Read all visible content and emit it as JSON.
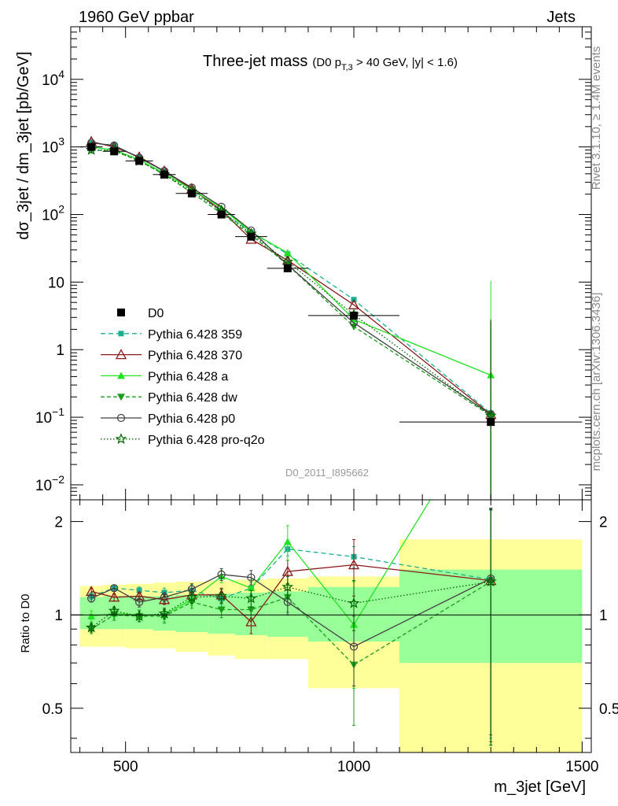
{
  "header": {
    "left": "1960 GeV ppbar",
    "right": "Jets"
  },
  "side_labels": {
    "rivet": "Rivet 3.1.10, ≥ 1.4M events",
    "mcplots": "mcplots.cern.ch [arXiv:1306.3436]"
  },
  "chart_data": {
    "type": "line",
    "title": "Three-jet mass",
    "subtitle": "(D0 pT,3 > 40 GeV, |y| < 1.6)",
    "subtitle_parts": {
      "pre": "(D0 p",
      "sub": "T,3",
      "post": " > 40 GeV, |y| < 1.6)"
    },
    "watermark": "D0_2011_I895662",
    "xlabel": "m_3jet [GeV]",
    "ylabel": "dσ_3jet / dm_3jet [pb/GeV]",
    "ratio_ylabel": "Ratio to D0",
    "xlim": [
      380,
      1520
    ],
    "ylim": [
      0.006,
      60000
    ],
    "ratio_ylim": [
      0.36,
      2.35
    ],
    "yscale": "log",
    "ratio_yscale": "log",
    "x_ticks": [
      "500",
      "1000",
      "1500"
    ],
    "y_ticks": [
      {
        "base": "10",
        "exp": "4",
        "v": 10000
      },
      {
        "base": "10",
        "exp": "3",
        "v": 1000
      },
      {
        "base": "10",
        "exp": "2",
        "v": 100
      },
      {
        "base": "10",
        "exp": "",
        "v": 10
      },
      {
        "base": "1",
        "exp": "",
        "v": 1
      },
      {
        "base": "10",
        "exp": "−1",
        "v": 0.1
      },
      {
        "base": "10",
        "exp": "−2",
        "v": 0.01
      }
    ],
    "ratio_ticks": [
      {
        "label": "2",
        "v": 2
      },
      {
        "label": "1",
        "v": 1
      },
      {
        "label": "0.5",
        "v": 0.5
      }
    ],
    "legend_position": "lower-left",
    "data": {
      "name": "D0",
      "x": [
        425,
        475,
        530,
        585,
        645,
        710,
        775,
        855,
        1000,
        1300
      ],
      "y": [
        1000,
        860,
        620,
        390,
        205,
        100,
        47,
        16,
        3.2,
        0.085
      ],
      "xerr": [
        [
          400,
          450
        ],
        [
          450,
          500
        ],
        [
          500,
          560
        ],
        [
          560,
          610
        ],
        [
          610,
          680
        ],
        [
          680,
          740
        ],
        [
          740,
          810
        ],
        [
          810,
          900
        ],
        [
          900,
          1100
        ],
        [
          1100,
          1500
        ]
      ]
    },
    "bands": [
      {
        "x0": 400,
        "x1": 450,
        "in": [
          0.9,
          1.14
        ],
        "out": [
          0.79,
          1.24
        ]
      },
      {
        "x0": 450,
        "x1": 500,
        "in": [
          0.9,
          1.15
        ],
        "out": [
          0.79,
          1.25
        ]
      },
      {
        "x0": 500,
        "x1": 560,
        "in": [
          0.9,
          1.15
        ],
        "out": [
          0.78,
          1.26
        ]
      },
      {
        "x0": 560,
        "x1": 610,
        "in": [
          0.89,
          1.15
        ],
        "out": [
          0.78,
          1.27
        ]
      },
      {
        "x0": 610,
        "x1": 680,
        "in": [
          0.88,
          1.16
        ],
        "out": [
          0.76,
          1.28
        ]
      },
      {
        "x0": 680,
        "x1": 740,
        "in": [
          0.87,
          1.17
        ],
        "out": [
          0.74,
          1.29
        ]
      },
      {
        "x0": 740,
        "x1": 810,
        "in": [
          0.86,
          1.18
        ],
        "out": [
          0.72,
          1.3
        ]
      },
      {
        "x0": 810,
        "x1": 900,
        "in": [
          0.85,
          1.19
        ],
        "out": [
          0.72,
          1.31
        ]
      },
      {
        "x0": 900,
        "x1": 1100,
        "in": [
          0.82,
          1.23
        ],
        "out": [
          0.58,
          1.33
        ]
      },
      {
        "x0": 1100,
        "x1": 1500,
        "in": [
          0.7,
          1.4
        ],
        "out": [
          0.34,
          1.75
        ]
      }
    ],
    "series": [
      {
        "name": "Pythia 6.428 359",
        "color": "#1aaf8f",
        "dash": "6,4",
        "marker": "square",
        "x": [
          425,
          475,
          530,
          585,
          645,
          710,
          775,
          855,
          1000,
          1300
        ],
        "y": [
          1150,
          1050,
          700,
          430,
          240,
          110,
          55,
          26,
          5.5,
          0.115
        ],
        "ratio": [
          1.15,
          1.22,
          1.2,
          1.18,
          1.2,
          1.13,
          1.22,
          1.63,
          1.54,
          1.3
        ],
        "err": [
          0.03,
          0.03,
          0.03,
          0.04,
          0.05,
          0.05,
          0.05,
          0.08,
          0.12,
          0.9
        ]
      },
      {
        "name": "Pythia 6.428 370",
        "color": "#8b1a1a",
        "dash": "",
        "marker": "triangle-open",
        "x": [
          425,
          475,
          530,
          585,
          645,
          710,
          775,
          855,
          1000,
          1300
        ],
        "y": [
          1200,
          1000,
          710,
          440,
          240,
          115,
          43,
          21,
          4.6,
          0.11
        ],
        "ratio": [
          1.19,
          1.14,
          1.15,
          1.12,
          1.16,
          1.16,
          0.95,
          1.38,
          1.45,
          1.29
        ],
        "err": [
          0.03,
          0.03,
          0.03,
          0.04,
          0.05,
          0.06,
          0.08,
          0.12,
          0.3,
          0.9
        ]
      },
      {
        "name": "Pythia 6.428 a",
        "color": "#22e322",
        "dash": "",
        "marker": "triangle",
        "x": [
          425,
          475,
          530,
          585,
          645,
          710,
          775,
          855,
          1000,
          1300
        ],
        "y": [
          1000,
          900,
          650,
          405,
          235,
          125,
          55,
          27,
          2.8,
          0.42
        ],
        "ratio": [
          0.99,
          1.01,
          1.0,
          1.0,
          1.12,
          1.33,
          1.22,
          1.72,
          0.93,
          4.9
        ],
        "err": [
          0.04,
          0.04,
          0.04,
          0.05,
          0.05,
          0.06,
          0.08,
          0.22,
          0.35,
          1.0
        ]
      },
      {
        "name": "Pythia 6.428 dw",
        "color": "#1b9c1b",
        "dash": "5,3",
        "marker": "triangle-down",
        "x": [
          425,
          475,
          530,
          585,
          645,
          710,
          775,
          855,
          1000,
          1300
        ],
        "y": [
          900,
          870,
          620,
          390,
          210,
          104,
          50,
          18,
          2.2,
          0.105
        ],
        "ratio": [
          0.9,
          1.0,
          0.99,
          0.99,
          1.1,
          1.04,
          1.04,
          1.14,
          0.69,
          1.28
        ],
        "err": [
          0.03,
          0.04,
          0.04,
          0.05,
          0.05,
          0.06,
          0.08,
          0.12,
          0.25,
          0.9
        ]
      },
      {
        "name": "Pythia 6.428 p0",
        "color": "#404040",
        "dash": "",
        "marker": "circle-open",
        "x": [
          425,
          475,
          530,
          585,
          645,
          710,
          775,
          855,
          1000,
          1300
        ],
        "y": [
          1150,
          1050,
          690,
          440,
          250,
          130,
          58,
          18,
          2.5,
          0.11
        ],
        "ratio": [
          1.13,
          1.22,
          1.1,
          1.14,
          1.21,
          1.35,
          1.32,
          1.1,
          0.79,
          1.31
        ],
        "err": [
          0.03,
          0.03,
          0.04,
          0.04,
          0.05,
          0.06,
          0.07,
          0.1,
          0.2,
          0.9
        ]
      },
      {
        "name": "Pythia 6.428 pro-q2o",
        "color": "#006400",
        "dash": "1.5,2.5",
        "marker": "star",
        "x": [
          425,
          475,
          530,
          585,
          645,
          710,
          775,
          855,
          1000,
          1300
        ],
        "y": [
          900,
          900,
          620,
          395,
          220,
          112,
          52,
          20,
          3.3,
          0.105
        ],
        "ratio": [
          0.91,
          1.03,
          0.99,
          1.01,
          1.14,
          1.15,
          1.13,
          1.23,
          1.09,
          1.28
        ],
        "err": [
          0.03,
          0.03,
          0.04,
          0.04,
          0.05,
          0.06,
          0.07,
          0.1,
          0.2,
          0.9
        ]
      }
    ]
  }
}
